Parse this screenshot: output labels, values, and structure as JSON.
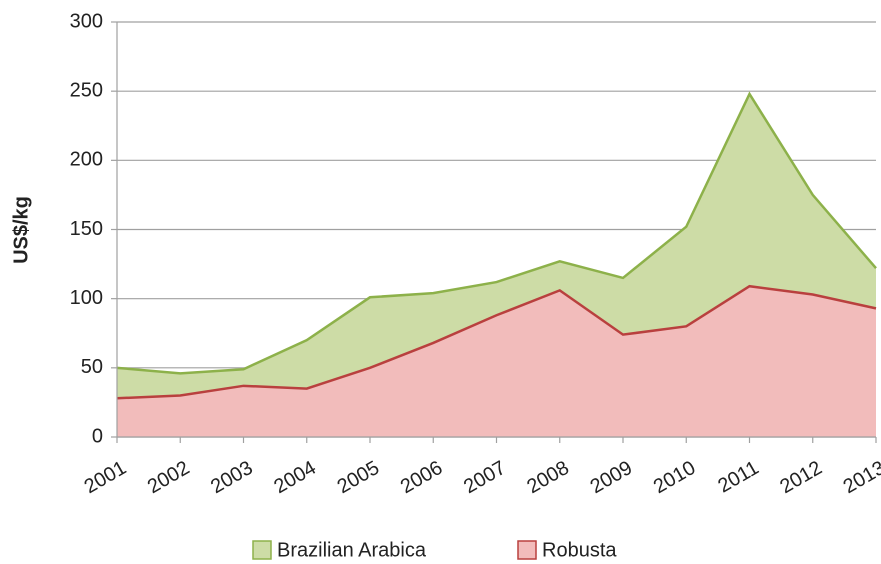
{
  "chart_data": {
    "type": "area",
    "y_label": "US$/kg",
    "categories": [
      "2001",
      "2002",
      "2003",
      "2004",
      "2005",
      "2006",
      "2007",
      "2008",
      "2009",
      "2010",
      "2011",
      "2012",
      "2013"
    ],
    "series": [
      {
        "name": "Brazilian Arabica",
        "color": "#cddca6",
        "line_color": "#8db14a",
        "values": [
          50,
          46,
          49,
          70,
          101,
          104,
          112,
          127,
          115,
          152,
          248,
          175,
          122
        ]
      },
      {
        "name": "Robusta",
        "color": "#f2bcbb",
        "line_color": "#b9403e",
        "values": [
          28,
          30,
          37,
          35,
          50,
          68,
          88,
          106,
          74,
          80,
          109,
          103,
          93
        ]
      }
    ],
    "ylim": [
      0,
      300
    ],
    "yticks": [
      0,
      50,
      100,
      150,
      200,
      250,
      300
    ],
    "grid": true
  }
}
